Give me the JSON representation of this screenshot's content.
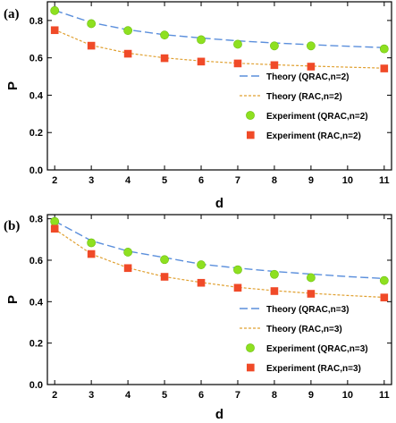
{
  "colors": {
    "qrac_theory": "#5b8fdc",
    "rac_theory": "#e0a030",
    "qrac_exp": "#8ee020",
    "qrac_exp_edge": "#6cc010",
    "rac_exp": "#f04a28",
    "frame": "#000000"
  },
  "chart_data": [
    {
      "type": "line",
      "panel_label": "(a)",
      "xlabel": "d",
      "ylabel": "P",
      "xlim": [
        1.8,
        11.2
      ],
      "ylim": [
        0.0,
        0.9
      ],
      "xticks": [
        2,
        3,
        4,
        5,
        6,
        7,
        8,
        9,
        10,
        11
      ],
      "yticks": [
        "0.0",
        "0.2",
        "0.4",
        "0.6",
        "0.8"
      ],
      "grid": false,
      "legend_position": "bottom-right",
      "series": [
        {
          "name": "Theory (QRAC,n=2)",
          "kind": "theory",
          "style": "qrac",
          "x": [
            2,
            3,
            4,
            5,
            6,
            7,
            8,
            9,
            10,
            11
          ],
          "y": [
            0.854,
            0.789,
            0.75,
            0.724,
            0.706,
            0.691,
            0.68,
            0.67,
            0.662,
            0.655
          ]
        },
        {
          "name": "Theory (RAC,n=2)",
          "kind": "theory",
          "style": "rac",
          "x": [
            2,
            3,
            4,
            5,
            6,
            7,
            8,
            9,
            10,
            11
          ],
          "y": [
            0.75,
            0.667,
            0.625,
            0.6,
            0.583,
            0.571,
            0.563,
            0.556,
            0.55,
            0.545
          ]
        },
        {
          "name": "Experiment (QRAC,n=2)",
          "kind": "experiment",
          "style": "qrac",
          "x": [
            2,
            3,
            4,
            5,
            6,
            7,
            8,
            9,
            11
          ],
          "y": [
            0.853,
            0.783,
            0.746,
            0.722,
            0.697,
            0.673,
            0.664,
            0.664,
            0.648
          ]
        },
        {
          "name": "Experiment (RAC,n=2)",
          "kind": "experiment",
          "style": "rac",
          "x": [
            2,
            3,
            4,
            5,
            6,
            7,
            8,
            9,
            11
          ],
          "y": [
            0.748,
            0.665,
            0.622,
            0.598,
            0.58,
            0.57,
            0.561,
            0.553,
            0.543
          ]
        }
      ]
    },
    {
      "type": "line",
      "panel_label": "(b)",
      "xlabel": "d",
      "ylabel": "P",
      "xlim": [
        1.8,
        11.2
      ],
      "ylim": [
        0.0,
        0.82
      ],
      "xticks": [
        2,
        3,
        4,
        5,
        6,
        7,
        8,
        9,
        10,
        11
      ],
      "yticks": [
        "0.0",
        "0.2",
        "0.4",
        "0.6",
        "0.8"
      ],
      "grid": false,
      "legend_position": "bottom-right",
      "series": [
        {
          "name": "Theory (QRAC,n=3)",
          "kind": "theory",
          "style": "qrac",
          "x": [
            2,
            3,
            4,
            5,
            6,
            7,
            8,
            9,
            10,
            11
          ],
          "y": [
            0.789,
            0.694,
            0.644,
            0.613,
            0.581,
            0.562,
            0.546,
            0.533,
            0.521,
            0.512
          ]
        },
        {
          "name": "Theory (RAC,n=3)",
          "kind": "theory",
          "style": "rac",
          "x": [
            2,
            3,
            4,
            5,
            6,
            7,
            8,
            9,
            10,
            11
          ],
          "y": [
            0.75,
            0.63,
            0.563,
            0.52,
            0.493,
            0.469,
            0.453,
            0.44,
            0.43,
            0.421
          ]
        },
        {
          "name": "Experiment (QRAC,n=3)",
          "kind": "experiment",
          "style": "qrac",
          "x": [
            2,
            3,
            4,
            5,
            6,
            7,
            8,
            9,
            11
          ],
          "y": [
            0.787,
            0.684,
            0.639,
            0.603,
            0.578,
            0.554,
            0.532,
            0.516,
            0.502
          ]
        },
        {
          "name": "Experiment (RAC,n=3)",
          "kind": "experiment",
          "style": "rac",
          "x": [
            2,
            3,
            4,
            5,
            6,
            7,
            8,
            9,
            11
          ],
          "y": [
            0.752,
            0.63,
            0.562,
            0.52,
            0.491,
            0.467,
            0.451,
            0.438,
            0.42
          ]
        }
      ]
    }
  ]
}
